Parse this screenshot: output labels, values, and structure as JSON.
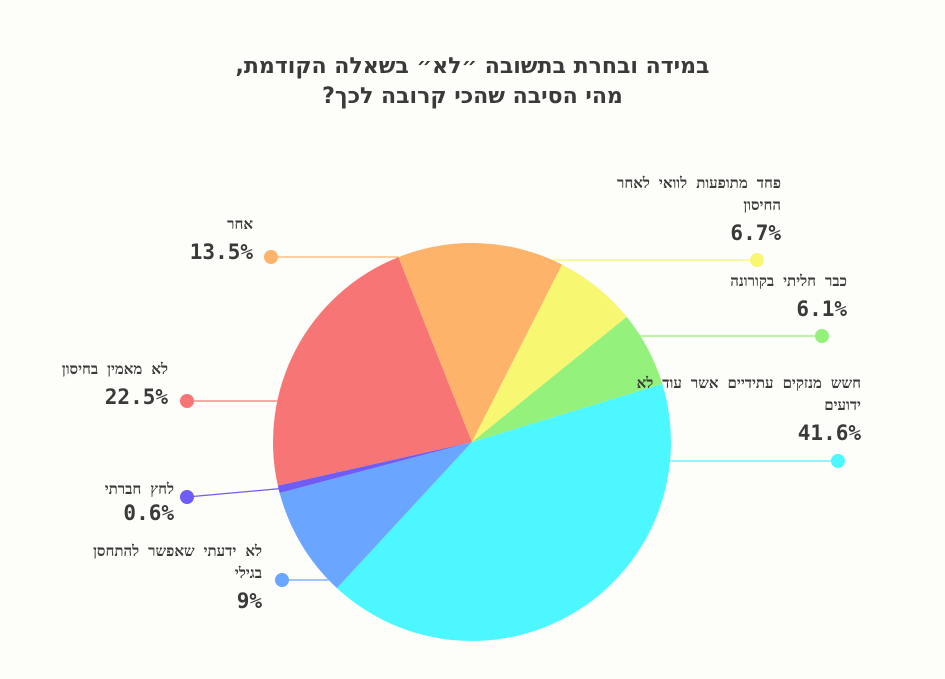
{
  "title": {
    "line1": "במידה ובחרת בתשובה ״לא״ בשאלה הקודמת,",
    "line2": "מהי הסיבה שהכי קרובה לכך?"
  },
  "chart_data": {
    "type": "pie",
    "title": "במידה ובחרת בתשובה ״לא״ בשאלה הקודמת, מהי הסיבה שהכי קרובה לכך?",
    "slices": [
      {
        "label": "חשש מנזקים עתידיים אשר עוד לא ידועים",
        "value": 41.6,
        "pct_text": "41.6%",
        "color": "#4cf7ff"
      },
      {
        "label": "לא ידעתי שאפשר להתחסן בגילי",
        "value": 9,
        "pct_text": "9%",
        "color": "#6aa5ff"
      },
      {
        "label": "לחץ חברתי",
        "value": 0.6,
        "pct_text": "0.6%",
        "color": "#6e5cf5"
      },
      {
        "label": "לא מאמין בחיסון",
        "value": 22.5,
        "pct_text": "22.5%",
        "color": "#f87575"
      },
      {
        "label": "אחר",
        "value": 13.5,
        "pct_text": "13.5%",
        "color": "#fdb36a"
      },
      {
        "label": "פחד מתופעות לוואי לאחר החיסון",
        "value": 6.7,
        "pct_text": "6.7%",
        "color": "#f7f772"
      },
      {
        "label": "כבר חליתי בקורונה",
        "value": 6.1,
        "pct_text": "6.1%",
        "color": "#93f17c"
      }
    ]
  }
}
